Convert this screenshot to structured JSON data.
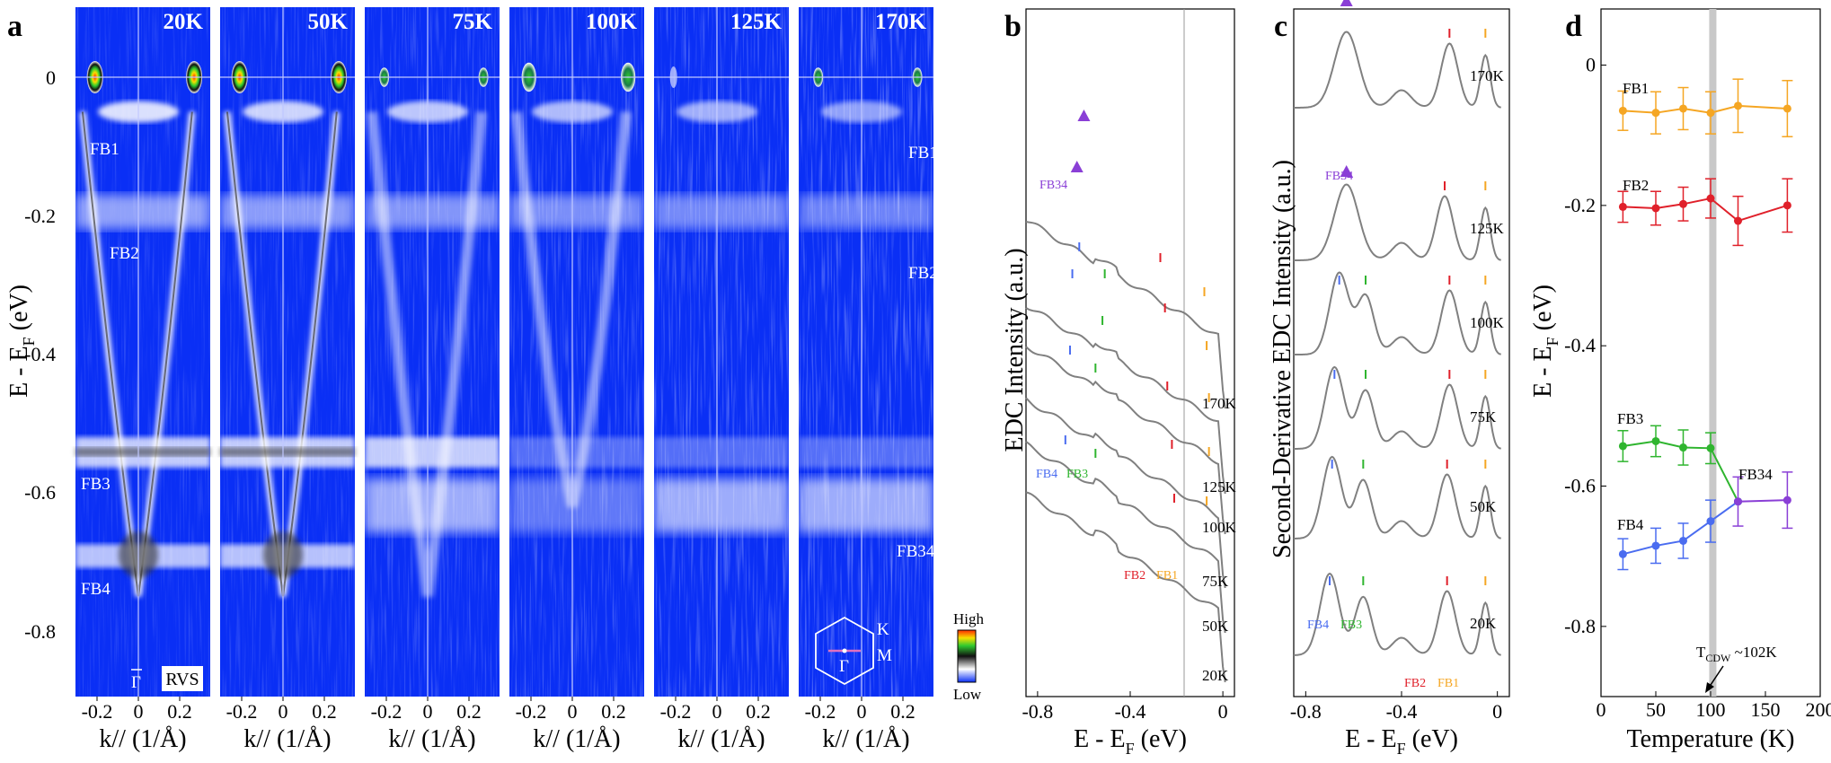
{
  "panel_letters": [
    "a",
    "b",
    "c",
    "d"
  ],
  "colors": {
    "arpes_bg": "#0a2ff5",
    "FB1": "#f5a623",
    "FB2": "#e0202a",
    "FB3": "#2fb52f",
    "FB4": "#4a6cf0",
    "FB34": "#8a3fd6",
    "curve": "#808080",
    "tcdw_band": "#c8c8c8"
  },
  "panel_a": {
    "ylabel": "E - E_F (eV)",
    "ylabel_main": "E - E",
    "ylabel_sub": "F",
    "ylabel_unit": " (eV)",
    "xlabel": "k// (1/Å)",
    "y_ticks": [
      "0",
      "-0.2",
      "-0.4",
      "-0.6",
      "-0.8"
    ],
    "x_ticks": [
      "-0.2",
      "0",
      "0.2"
    ],
    "temperatures": [
      "20K",
      "50K",
      "75K",
      "100K",
      "125K",
      "170K"
    ],
    "band_labels_left": [
      "FB1",
      "FB2",
      "FB3",
      "FB4"
    ],
    "band_labels_right": [
      "FB1",
      "FB2",
      "FB34"
    ],
    "gamma_label": "Γ",
    "rvs_label": "RVS",
    "colorbar_high": "High",
    "colorbar_low": "Low",
    "bz_K": "K",
    "bz_M": "M",
    "bz_G": "Γ"
  },
  "panel_b": {
    "ylabel": "EDC Intensity (a.u.)",
    "xlabel_main": "E - E",
    "xlabel_sub": "F",
    "xlabel_unit": " (eV)",
    "x_ticks": [
      "-0.8",
      "-0.4",
      "0"
    ],
    "band_labels": {
      "FB34": "FB34",
      "FB4": "FB4",
      "FB3": "FB3",
      "FB2": "FB2",
      "FB1": "FB1"
    }
  },
  "panel_c": {
    "ylabel": "Second-Derivative EDC Intensity (a.u.)",
    "xlabel_main": "E - E",
    "xlabel_sub": "F",
    "xlabel_unit": " (eV)",
    "x_ticks": [
      "-0.8",
      "-0.4",
      "0"
    ],
    "band_labels": {
      "FB34": "FB34",
      "FB4": "FB4",
      "FB3": "FB3",
      "FB2": "FB2",
      "FB1": "FB1"
    }
  },
  "chart_data": [
    {
      "panel": "b",
      "type": "line",
      "title": "",
      "xlabel": "E - E_F (eV)",
      "ylabel": "EDC Intensity (a.u.)",
      "xlim": [
        -0.85,
        0.05
      ],
      "series": [
        {
          "name": "20K",
          "label": "20K",
          "offset": 0
        },
        {
          "name": "50K",
          "label": "50K",
          "offset": 1
        },
        {
          "name": "75K",
          "label": "75K",
          "offset": 2
        },
        {
          "name": "100K",
          "label": "100K",
          "offset": 3
        },
        {
          "name": "125K",
          "label": "125K",
          "offset": 4
        },
        {
          "name": "170K",
          "label": "170K",
          "offset": 5
        }
      ]
    },
    {
      "panel": "c",
      "type": "line",
      "title": "",
      "xlabel": "E - E_F (eV)",
      "ylabel": "Second-Derivative EDC Intensity (a.u.)",
      "xlim": [
        -0.85,
        0.05
      ],
      "series": [
        {
          "name": "20K",
          "label": "20K",
          "peaks": {
            "FB4": -0.7,
            "FB3": -0.56,
            "FB2": -0.21,
            "FB1": -0.05
          }
        },
        {
          "name": "50K",
          "label": "50K",
          "peaks": {
            "FB4": -0.69,
            "FB3": -0.56,
            "FB2": -0.21,
            "FB1": -0.05
          }
        },
        {
          "name": "75K",
          "label": "75K",
          "peaks": {
            "FB4": -0.68,
            "FB3": -0.55,
            "FB2": -0.2,
            "FB1": -0.05
          }
        },
        {
          "name": "100K",
          "label": "100K",
          "peaks": {
            "FB4": -0.66,
            "FB3": -0.55,
            "FB2": -0.2,
            "FB1": -0.05
          }
        },
        {
          "name": "125K",
          "label": "125K",
          "peaks": {
            "FB34": -0.63,
            "FB2": -0.22,
            "FB1": -0.05
          }
        },
        {
          "name": "170K",
          "label": "170K",
          "peaks": {
            "FB34": -0.63,
            "FB2": -0.2,
            "FB1": -0.05
          }
        }
      ]
    },
    {
      "panel": "d",
      "type": "line",
      "title": "",
      "xlabel": "Temperature (K)",
      "ylabel": "E - E_F (eV)",
      "xlim": [
        0,
        200
      ],
      "ylim": [
        -0.9,
        0.08
      ],
      "x_ticks": [
        "0",
        "50",
        "100",
        "150",
        "200"
      ],
      "y_ticks": [
        "0",
        "-0.2",
        "-0.4",
        "-0.6",
        "-0.8"
      ],
      "tcdw_K": 102,
      "tcdw_label": "T",
      "tcdw_sub": "CDW",
      "tcdw_suffix": " ~102K",
      "series": [
        {
          "name": "FB1",
          "color": "#f5a623",
          "x": [
            20,
            50,
            75,
            100,
            125,
            170
          ],
          "y": [
            -0.065,
            -0.068,
            -0.062,
            -0.068,
            -0.058,
            -0.062
          ],
          "err": [
            0.028,
            0.03,
            0.03,
            0.03,
            0.038,
            0.04
          ]
        },
        {
          "name": "FB2",
          "color": "#e0202a",
          "x": [
            20,
            50,
            75,
            100,
            125,
            170
          ],
          "y": [
            -0.202,
            -0.204,
            -0.198,
            -0.19,
            -0.222,
            -0.2
          ],
          "err": [
            0.022,
            0.024,
            0.024,
            0.028,
            0.035,
            0.038
          ]
        },
        {
          "name": "FB3",
          "color": "#2fb52f",
          "x": [
            20,
            50,
            75,
            100,
            125
          ],
          "y": [
            -0.543,
            -0.536,
            -0.545,
            -0.546,
            -0.622
          ],
          "err": [
            0.022,
            0.022,
            0.025,
            0.022,
            0.0
          ]
        },
        {
          "name": "FB4",
          "color": "#4a6cf0",
          "x": [
            20,
            50,
            75,
            100,
            125
          ],
          "y": [
            -0.697,
            -0.685,
            -0.678,
            -0.65,
            -0.622
          ],
          "err": [
            0.022,
            0.025,
            0.025,
            0.03,
            0.0
          ]
        },
        {
          "name": "FB34",
          "color": "#8a3fd6",
          "x": [
            125,
            170
          ],
          "y": [
            -0.622,
            -0.62
          ],
          "err": [
            0.035,
            0.04
          ]
        }
      ]
    }
  ]
}
